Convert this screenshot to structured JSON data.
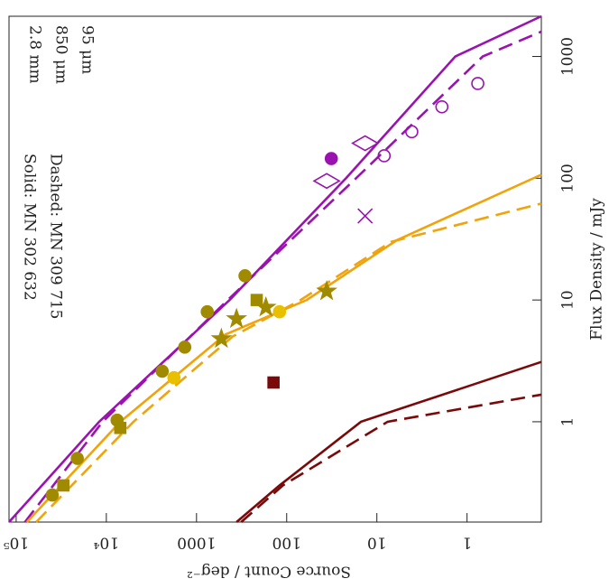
{
  "chart_data": {
    "type": "line",
    "x_label": "Flux Density / mJy",
    "y_label": "Source Count / deg⁻²",
    "xscale": "log",
    "yscale": "log",
    "xlim": [
      0.15,
      2140
    ],
    "ylim": [
      120000,
      0.15
    ],
    "xticks": [
      1,
      10,
      100,
      1000
    ],
    "yticks": [
      {
        "value": 100000,
        "label": "10⁵"
      },
      {
        "value": 10000,
        "label": "10⁴"
      },
      1000,
      100,
      10,
      1
    ],
    "legend": [
      {
        "label": "2.8 mm",
        "color": "#7a0a0a"
      },
      {
        "label": "850 μm",
        "color": "#f0a30a"
      },
      {
        "label": "95 μm",
        "color": "#9a12b0"
      }
    ],
    "annotations": [
      "Solid: MN 302 632",
      "Dashed: MN 309 715"
    ],
    "series": [
      {
        "kind": "curve",
        "dash": false,
        "color": "#9a12b0",
        "x": [
          0.15,
          1,
          10,
          100,
          1000,
          2140
        ],
        "values": [
          120000,
          12000,
          430,
          22,
          1.35,
          0.15
        ]
      },
      {
        "kind": "curve",
        "dash": true,
        "color": "#9a12b0",
        "x": [
          0.15,
          1,
          10,
          100,
          1000,
          1600
        ],
        "values": [
          80000,
          11000,
          450,
          17,
          0.67,
          0.15
        ]
      },
      {
        "kind": "curve",
        "dash": false,
        "color": "#f0a30a",
        "x": [
          0.15,
          1,
          5.2,
          10,
          31,
          107
        ],
        "values": [
          76000,
          7000,
          480,
          60,
          6,
          0.15
        ]
      },
      {
        "kind": "curve",
        "dash": true,
        "color": "#f0a30a",
        "x": [
          0.15,
          1,
          5,
          10,
          30,
          62
        ],
        "values": [
          60000,
          5000,
          400,
          70,
          7,
          0.15
        ]
      },
      {
        "kind": "curve",
        "dash": false,
        "color": "#7a0a0a",
        "x": [
          0.15,
          0.3,
          1,
          3.1
        ],
        "values": [
          360,
          120,
          15,
          0.15
        ]
      },
      {
        "kind": "curve",
        "dash": true,
        "color": "#7a0a0a",
        "x": [
          0.15,
          0.3,
          1,
          1.67
        ],
        "values": [
          320,
          110,
          7.6,
          0.15
        ]
      },
      {
        "kind": "points",
        "marker": "circle",
        "color": "#9a12b0",
        "hollow": true,
        "x": [
          600,
          386,
          241,
          153
        ],
        "values": [
          0.76,
          1.9,
          4.1,
          8.3
        ]
      },
      {
        "kind": "points",
        "marker": "diamond",
        "color": "#9a12b0",
        "hollow": true,
        "x": [
          194,
          95
        ],
        "values": [
          13.5,
          36
        ]
      },
      {
        "kind": "points",
        "marker": "circle",
        "color": "#9a12b0",
        "hollow": false,
        "x": [
          145
        ],
        "values": [
          32
        ]
      },
      {
        "kind": "points",
        "marker": "cross",
        "color": "#9a12b0",
        "hollow": false,
        "x": [
          49
        ],
        "values": [
          13.5
        ]
      },
      {
        "kind": "points",
        "marker": "circle",
        "color": "#e8c000",
        "hollow": false,
        "x": [
          8.0,
          2.3
        ],
        "values": [
          120,
          1780
        ]
      },
      {
        "kind": "points",
        "marker": "circle",
        "color": "#a08a00",
        "hollow": false,
        "x": [
          0.25,
          0.5,
          1.03,
          4.1,
          8.0,
          15.8,
          2.6
        ],
        "values": [
          39800,
          21000,
          7600,
          1350,
          760,
          290,
          2400
        ]
      },
      {
        "kind": "points",
        "marker": "square",
        "color": "#a08a00",
        "hollow": false,
        "x": [
          0.89,
          0.3,
          10
        ],
        "values": [
          7000,
          30000,
          215
        ]
      },
      {
        "kind": "points",
        "marker": "star",
        "color": "#a08a00",
        "hollow": false,
        "x": [
          4.8,
          7.0,
          8.7,
          11.8
        ],
        "values": [
          530,
          360,
          170,
          36
        ]
      },
      {
        "kind": "points",
        "marker": "square",
        "color": "#7a0a0a",
        "hollow": false,
        "x": [
          2.1
        ],
        "values": [
          140
        ]
      }
    ]
  }
}
